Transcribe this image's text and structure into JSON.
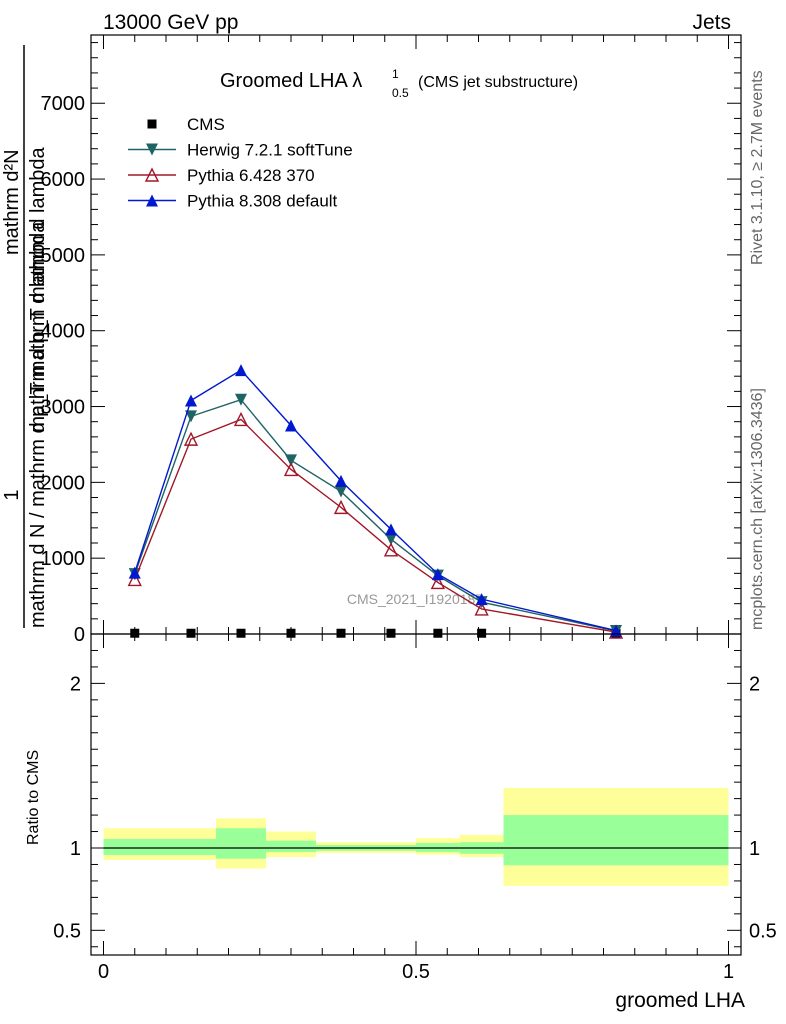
{
  "header": {
    "left": "13000 GeV pp",
    "right": "Jets"
  },
  "side": {
    "top": "Rivet 3.1.10, ≥ 2.7M events",
    "bottom": "mcplots.cern.ch [arXiv:1306.3436]"
  },
  "chart_data": {
    "type": "line",
    "title": "Groomed LHA λ",
    "title_sup": "1",
    "title_sub": "0.5",
    "title_note": "(CMS jet substructure)",
    "watermark": "CMS_2021_I1920187",
    "xlabel": "groomed LHA",
    "ylabel_main": [
      "1",
      "mathrm d N / mathrm d p_T mathrm d lambda",
      "mathrm d²N",
      "mathrm d p_T mathrm d lambda"
    ],
    "ylabel_ratio": "Ratio to CMS",
    "xlim": [
      -0.02,
      1.02
    ],
    "ylim": [
      0,
      7900
    ],
    "ratio_ylim": [
      0.35,
      2.3
    ],
    "x_ticks": [
      {
        "v": 0,
        "label": "0"
      },
      {
        "v": 0.5,
        "label": "0.5"
      },
      {
        "v": 1,
        "label": "1"
      }
    ],
    "y_ticks": [
      {
        "v": 0,
        "label": "0"
      },
      {
        "v": 1000,
        "label": "1000"
      },
      {
        "v": 2000,
        "label": "2000"
      },
      {
        "v": 3000,
        "label": "3000"
      },
      {
        "v": 4000,
        "label": "4000"
      },
      {
        "v": 5000,
        "label": "5000"
      },
      {
        "v": 6000,
        "label": "6000"
      },
      {
        "v": 7000,
        "label": "7000"
      }
    ],
    "ratio_ticks": [
      {
        "v": 0.5,
        "label": "0.5"
      },
      {
        "v": 1,
        "label": "1"
      },
      {
        "v": 2,
        "label": "2"
      }
    ],
    "x": [
      0.05,
      0.14,
      0.22,
      0.3,
      0.38,
      0.46,
      0.535,
      0.605,
      0.82
    ],
    "series": [
      {
        "name": "CMS",
        "color": "#000000",
        "marker": "square",
        "values": [
          10,
          10,
          10,
          10,
          10,
          10,
          10,
          10,
          10
        ]
      },
      {
        "name": "Herwig 7.2.1 softTune",
        "color": "#1f6464",
        "marker": "triangle-down",
        "values": [
          790,
          2870,
          3090,
          2290,
          1880,
          1250,
          770,
          420,
          40
        ]
      },
      {
        "name": "Pythia 6.428 370",
        "color": "#a01828",
        "marker": "triangle-open",
        "values": [
          720,
          2570,
          2830,
          2170,
          1670,
          1110,
          680,
          330,
          25
        ]
      },
      {
        "name": "Pythia 8.308 default",
        "color": "#0018d0",
        "marker": "triangle-up",
        "values": [
          810,
          3080,
          3480,
          2750,
          2020,
          1380,
          790,
          460,
          45
        ]
      }
    ],
    "ratio_bands": [
      {
        "x0": 0.0,
        "x1": 0.18,
        "inner": [
          0.957,
          1.055
        ],
        "outer": [
          0.927,
          1.12
        ]
      },
      {
        "x0": 0.18,
        "x1": 0.26,
        "inner": [
          0.935,
          1.12
        ],
        "outer": [
          0.875,
          1.18
        ]
      },
      {
        "x0": 0.26,
        "x1": 0.34,
        "inner": [
          0.975,
          1.045
        ],
        "outer": [
          0.945,
          1.1
        ]
      },
      {
        "x0": 0.34,
        "x1": 0.5,
        "inner": [
          0.983,
          1.018
        ],
        "outer": [
          0.97,
          1.035
        ]
      },
      {
        "x0": 0.5,
        "x1": 0.57,
        "inner": [
          0.975,
          1.03
        ],
        "outer": [
          0.96,
          1.06
        ]
      },
      {
        "x0": 0.57,
        "x1": 0.64,
        "inner": [
          0.965,
          1.035
        ],
        "outer": [
          0.945,
          1.08
        ]
      },
      {
        "x0": 0.64,
        "x1": 1.0,
        "inner": [
          0.895,
          1.2
        ],
        "outer": [
          0.77,
          1.365
        ]
      }
    ],
    "band_colors": {
      "inner": "#99ff99",
      "outer": "#ffff99"
    },
    "grid": false,
    "legend_position": "top-left"
  }
}
